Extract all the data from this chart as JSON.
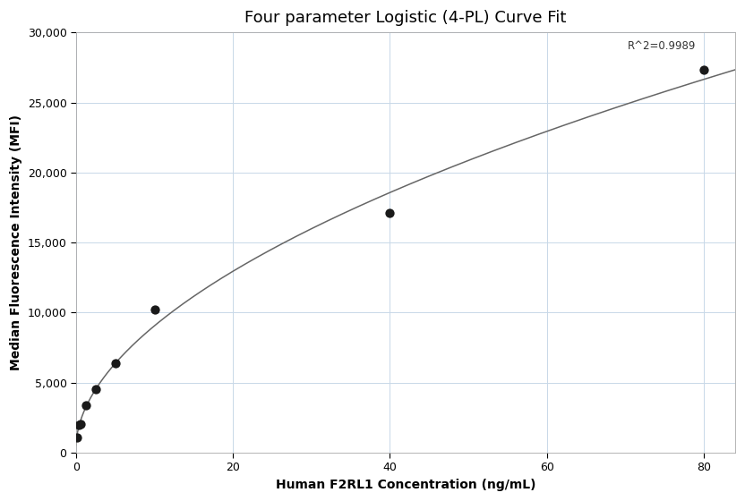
{
  "title": "Four parameter Logistic (4-PL) Curve Fit",
  "xlabel": "Human F2RL1 Concentration (ng/mL)",
  "ylabel": "Median Fluorescence Intensity (MFI)",
  "scatter_x": [
    0.156,
    0.313,
    0.625,
    1.25,
    2.5,
    5.0,
    10.0,
    40.0,
    80.0
  ],
  "scatter_y": [
    1100,
    1950,
    2050,
    3350,
    4500,
    6400,
    10200,
    17100,
    27300
  ],
  "xlim": [
    0,
    84
  ],
  "ylim": [
    0,
    30000
  ],
  "xticks": [
    0,
    20,
    40,
    60,
    80
  ],
  "yticks": [
    0,
    5000,
    10000,
    15000,
    20000,
    25000,
    30000
  ],
  "r2_text": "R^2=0.9989",
  "r2_x": 79,
  "r2_y": 28600,
  "curve_color": "#666666",
  "scatter_color": "#1a1a1a",
  "scatter_size": 55,
  "background_color": "#ffffff",
  "grid_color": "#c8d8e8",
  "title_fontsize": 13,
  "label_fontsize": 10,
  "tick_fontsize": 9,
  "4pl_A": 500,
  "4pl_B": 0.72,
  "4pl_C": 2000,
  "4pl_D": 45000
}
